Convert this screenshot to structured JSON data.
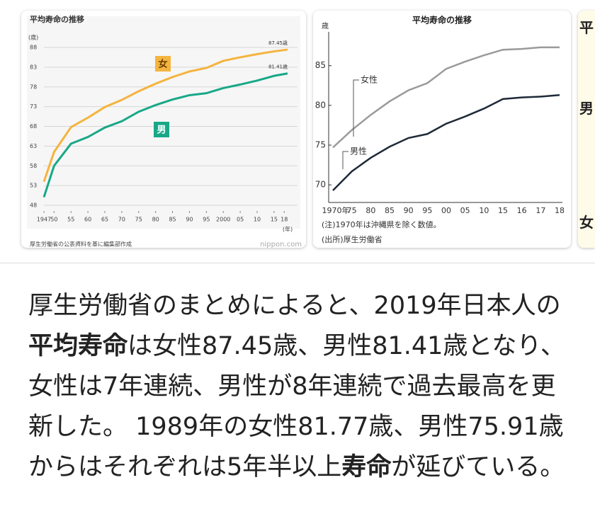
{
  "images": [
    {
      "chart_data": {
        "type": "line",
        "title": "平均寿命の推移",
        "y_unit": "(歳)",
        "x_unit": "(年)",
        "x": [
          1947,
          1950,
          1955,
          1960,
          1965,
          1970,
          1975,
          1980,
          1985,
          1990,
          1995,
          2000,
          2005,
          2010,
          2015,
          2019
        ],
        "series": [
          {
            "name": "女",
            "color": "#f4b43f",
            "values": [
              54.0,
              61.5,
              67.8,
              70.2,
              72.9,
              74.7,
              76.9,
              78.8,
              80.5,
              81.9,
              82.8,
              84.6,
              85.5,
              86.3,
              87.0,
              87.45
            ],
            "end_label": "87.45歳"
          },
          {
            "name": "男",
            "color": "#18a888",
            "values": [
              50.06,
              58.0,
              63.6,
              65.3,
              67.7,
              69.3,
              71.7,
              73.4,
              74.8,
              75.9,
              76.4,
              77.7,
              78.6,
              79.6,
              80.8,
              81.41
            ],
            "end_label": "81.41歳"
          }
        ],
        "xlim": [
          1947,
          2019
        ],
        "xticks": [
          1947,
          {
            "value": 1950,
            "label": "50"
          },
          {
            "value": 1955,
            "label": "55"
          },
          {
            "value": 1960,
            "label": "60"
          },
          {
            "value": 1965,
            "label": "65"
          },
          {
            "value": 1970,
            "label": "70"
          },
          {
            "value": 1975,
            "label": "75"
          },
          {
            "value": 1980,
            "label": "80"
          },
          {
            "value": 1985,
            "label": "85"
          },
          {
            "value": 1990,
            "label": "90"
          },
          {
            "value": 1995,
            "label": "95"
          },
          2000,
          {
            "value": 2005,
            "label": "05"
          },
          {
            "value": 2010,
            "label": "10"
          },
          {
            "value": 2015,
            "label": "15"
          },
          {
            "value": 2018,
            "label": "18"
          }
        ],
        "ylim": [
          48,
          88
        ],
        "yticks": [
          48,
          53,
          58,
          63,
          68,
          73,
          78,
          83,
          88
        ],
        "grid": true,
        "source": "厚生労働省の公表資料を基に編集部作成",
        "credit": "nippon.com"
      }
    },
    {
      "chart_data": {
        "type": "line",
        "title": "平均寿命の推移",
        "y_unit": "歳",
        "categories": [
          "1970年",
          "75",
          "80",
          "85",
          "90",
          "95",
          "00",
          "05",
          "10",
          "15",
          "16",
          "17",
          "18"
        ],
        "series": [
          {
            "name": "女性",
            "color": "#9a9a9a",
            "values": [
              74.7,
              76.9,
              78.8,
              80.5,
              81.9,
              82.8,
              84.6,
              85.5,
              86.3,
              87.0,
              87.1,
              87.3,
              87.3
            ]
          },
          {
            "name": "男性",
            "color": "#1e2a38",
            "values": [
              69.3,
              71.7,
              73.4,
              74.8,
              75.9,
              76.4,
              77.7,
              78.6,
              79.6,
              80.8,
              81.0,
              81.1,
              81.3
            ]
          }
        ],
        "ylim": [
          68.5,
          88
        ],
        "yticks": [
          70,
          75,
          80,
          85
        ],
        "grid": false,
        "notes": [
          "(注)1970年は沖縄県を除く数値。",
          "(出所)厚生労働省"
        ]
      }
    }
  ],
  "partial_card": {
    "texts": [
      "平",
      "男",
      "女"
    ]
  },
  "snippet": {
    "segments": [
      {
        "text": "厚生労働省のまとめによると、2019年日本人の",
        "bold": false
      },
      {
        "text": "平均寿命",
        "bold": true
      },
      {
        "text": "は女性87.45歳、男性81.41歳となり、女性は7年連続、男性が8年連続で過去最高を更新した。 1989年の女性81.77歳、男性75.91歳からはそれぞれは5年半以上",
        "bold": false
      },
      {
        "text": "寿命",
        "bold": true
      },
      {
        "text": "が延びている。",
        "bold": false
      }
    ]
  }
}
